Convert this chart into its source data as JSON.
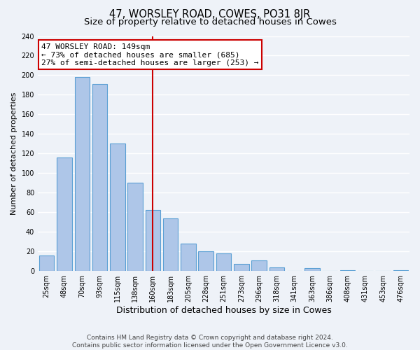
{
  "title": "47, WORSLEY ROAD, COWES, PO31 8JR",
  "subtitle": "Size of property relative to detached houses in Cowes",
  "xlabel": "Distribution of detached houses by size in Cowes",
  "ylabel": "Number of detached properties",
  "bar_labels": [
    "25sqm",
    "48sqm",
    "70sqm",
    "93sqm",
    "115sqm",
    "138sqm",
    "160sqm",
    "183sqm",
    "205sqm",
    "228sqm",
    "251sqm",
    "273sqm",
    "296sqm",
    "318sqm",
    "341sqm",
    "363sqm",
    "386sqm",
    "408sqm",
    "431sqm",
    "453sqm",
    "476sqm"
  ],
  "bar_values": [
    16,
    116,
    198,
    191,
    130,
    90,
    62,
    54,
    28,
    20,
    18,
    7,
    11,
    4,
    0,
    3,
    0,
    1,
    0,
    0,
    1
  ],
  "bar_color": "#aec6e8",
  "bar_edge_color": "#5a9fd4",
  "vline_x": 6.0,
  "vline_color": "#cc0000",
  "annotation_text": "47 WORSLEY ROAD: 149sqm\n← 73% of detached houses are smaller (685)\n27% of semi-detached houses are larger (253) →",
  "annotation_box_color": "#ffffff",
  "annotation_box_edge_color": "#cc0000",
  "ylim": [
    0,
    240
  ],
  "yticks": [
    0,
    20,
    40,
    60,
    80,
    100,
    120,
    140,
    160,
    180,
    200,
    220,
    240
  ],
  "footer_line1": "Contains HM Land Registry data © Crown copyright and database right 2024.",
  "footer_line2": "Contains public sector information licensed under the Open Government Licence v3.0.",
  "bg_color": "#eef2f8",
  "grid_color": "#ffffff",
  "title_fontsize": 10.5,
  "subtitle_fontsize": 9.5,
  "xlabel_fontsize": 9,
  "ylabel_fontsize": 8,
  "tick_fontsize": 7,
  "footer_fontsize": 6.5,
  "ann_fontsize": 8
}
